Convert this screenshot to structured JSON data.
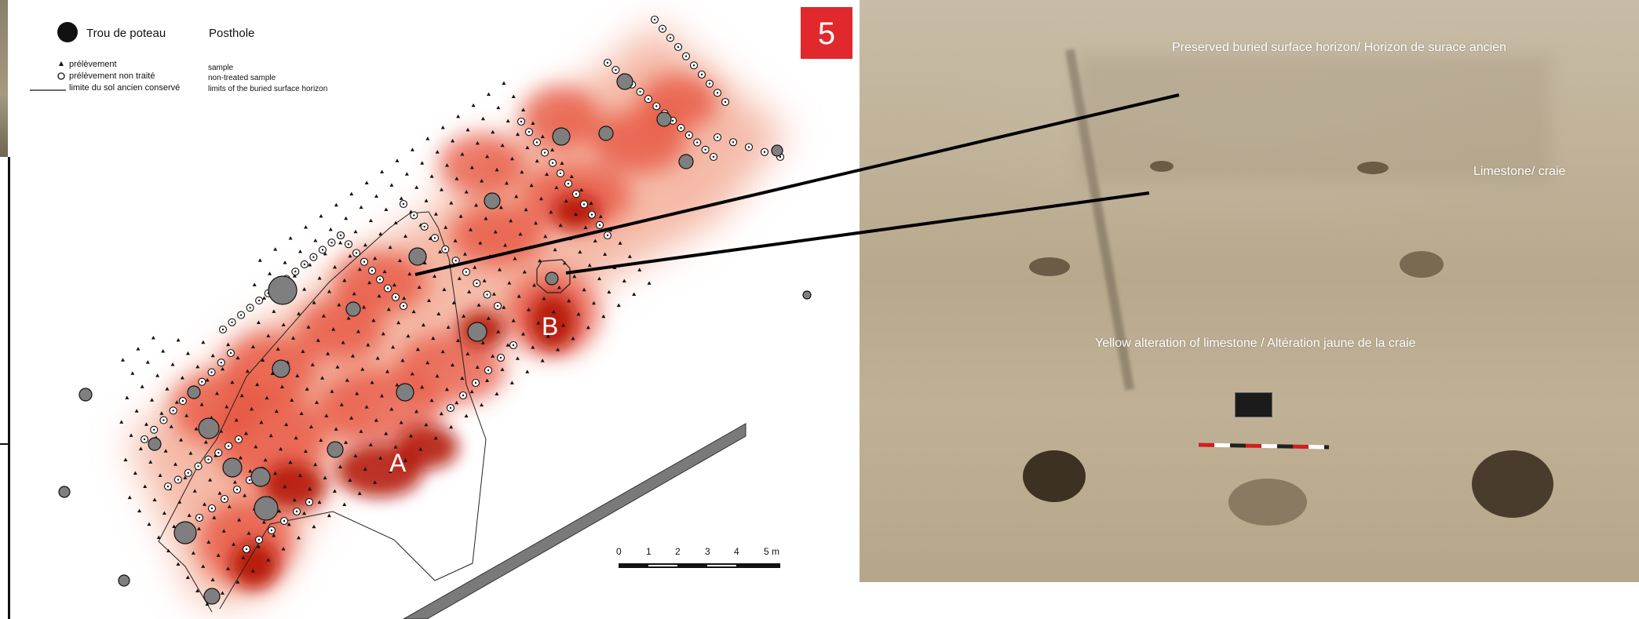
{
  "badge": {
    "number": "5",
    "color": "#e0282d"
  },
  "legend": {
    "posthole_fr": "Trou de poteau",
    "posthole_en": "Posthole",
    "sample_fr": "prélèvement",
    "sample_en": "sample",
    "untreated_fr": "prélèvement non traité",
    "untreated_en": "non-treated sample",
    "limit_fr": "limite du sol ancien conservé",
    "limit_en": "limits of the buried surface horizon"
  },
  "zones": {
    "a": "A",
    "b": "B"
  },
  "scale": {
    "ticks": [
      "0",
      "1",
      "2",
      "3",
      "4",
      "5 m"
    ]
  },
  "photo_labels": {
    "surface": "Preserved buried surface horizon/ Horizon de surace ancien",
    "limestone": "Limestone/ craie",
    "yellow": "Yellow alteration of limestone / Altération jaune de la craie"
  },
  "colors": {
    "heat": "#d01a10",
    "posthole": "#7f7f7f",
    "leader": "#000000"
  },
  "icons": [
    "posthole-icon",
    "sample-triangle-icon",
    "untreated-sample-circle-icon",
    "scale-bar",
    "north-arrow-free"
  ]
}
